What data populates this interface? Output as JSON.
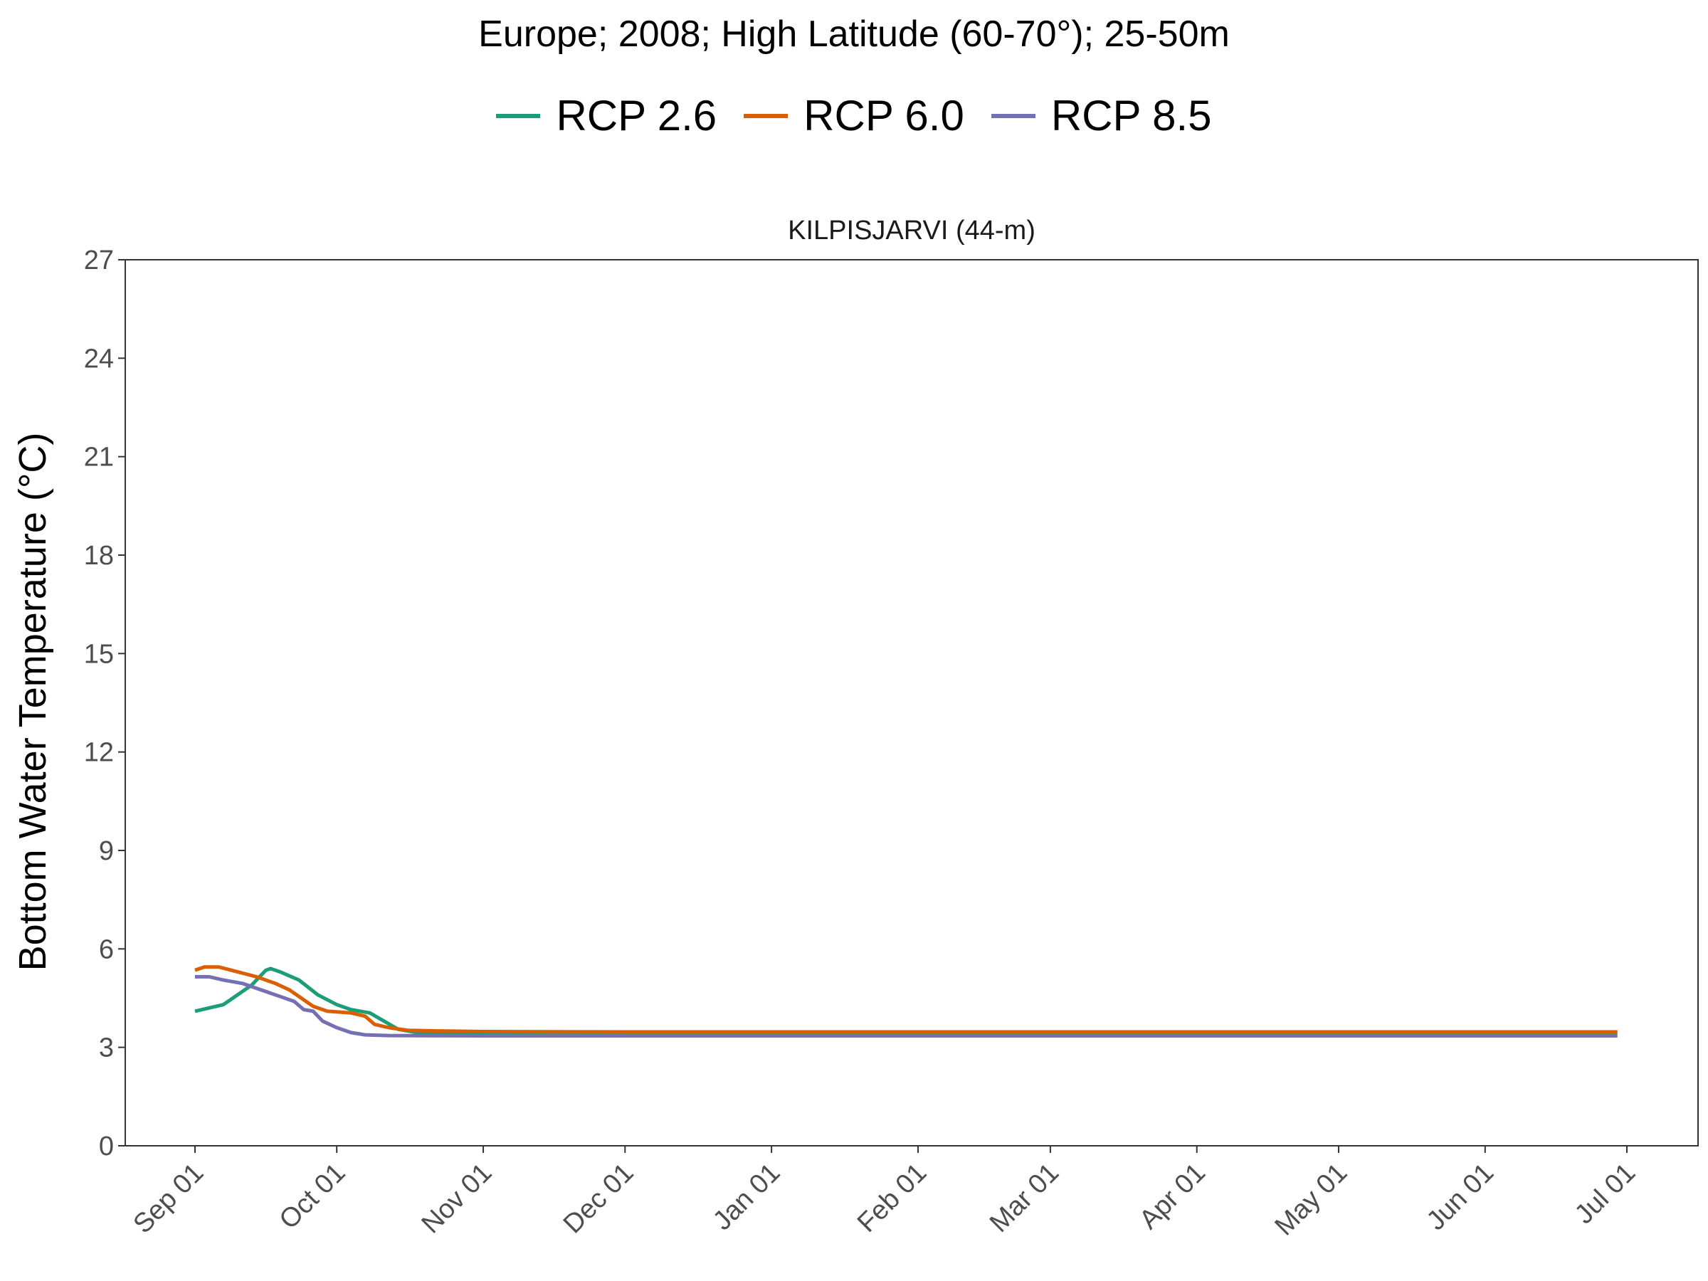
{
  "figure": {
    "title": "Europe;  2008;  High Latitude (60-70°);  25-50m"
  },
  "chart_data": {
    "type": "line",
    "facet_label": "KILPISJARVI (44-m)",
    "xlabel": "",
    "ylabel": "Bottom Water Temperature (°C)",
    "x_is_date": true,
    "xlim": [
      "2008-09-01",
      "2009-07-01"
    ],
    "ylim": [
      0,
      27
    ],
    "yticks": [
      0,
      3,
      6,
      9,
      12,
      15,
      18,
      21,
      24,
      27
    ],
    "xticks": [
      {
        "date": "2008-09-01",
        "label": "Sep 01"
      },
      {
        "date": "2008-10-01",
        "label": "Oct 01"
      },
      {
        "date": "2008-11-01",
        "label": "Nov 01"
      },
      {
        "date": "2008-12-01",
        "label": "Dec 01"
      },
      {
        "date": "2009-01-01",
        "label": "Jan 01"
      },
      {
        "date": "2009-02-01",
        "label": "Feb 01"
      },
      {
        "date": "2009-03-01",
        "label": "Mar 01"
      },
      {
        "date": "2009-04-01",
        "label": "Apr 01"
      },
      {
        "date": "2009-05-01",
        "label": "May 01"
      },
      {
        "date": "2009-06-01",
        "label": "Jun 01"
      },
      {
        "date": "2009-07-01",
        "label": "Jul 01"
      }
    ],
    "grid": false,
    "legend_position": "top",
    "series": [
      {
        "name": "RCP 2.6",
        "color": "#1b9e77",
        "points": [
          [
            "2008-09-01",
            4.1
          ],
          [
            "2008-09-04",
            4.2
          ],
          [
            "2008-09-07",
            4.3
          ],
          [
            "2008-09-10",
            4.6
          ],
          [
            "2008-09-13",
            4.9
          ],
          [
            "2008-09-16",
            5.35
          ],
          [
            "2008-09-17",
            5.4
          ],
          [
            "2008-09-19",
            5.3
          ],
          [
            "2008-09-23",
            5.05
          ],
          [
            "2008-09-27",
            4.6
          ],
          [
            "2008-10-01",
            4.3
          ],
          [
            "2008-10-04",
            4.15
          ],
          [
            "2008-10-08",
            4.05
          ],
          [
            "2008-10-11",
            3.8
          ],
          [
            "2008-10-14",
            3.55
          ],
          [
            "2008-10-18",
            3.45
          ],
          [
            "2008-11-01",
            3.45
          ],
          [
            "2008-12-01",
            3.44
          ],
          [
            "2009-02-01",
            3.44
          ],
          [
            "2009-04-01",
            3.44
          ],
          [
            "2009-06-29",
            3.44
          ]
        ]
      },
      {
        "name": "RCP 6.0",
        "color": "#d95f02",
        "points": [
          [
            "2008-09-01",
            5.35
          ],
          [
            "2008-09-03",
            5.45
          ],
          [
            "2008-09-06",
            5.45
          ],
          [
            "2008-09-10",
            5.3
          ],
          [
            "2008-09-14",
            5.15
          ],
          [
            "2008-09-18",
            4.95
          ],
          [
            "2008-09-21",
            4.75
          ],
          [
            "2008-09-24",
            4.45
          ],
          [
            "2008-09-26",
            4.25
          ],
          [
            "2008-09-29",
            4.1
          ],
          [
            "2008-10-04",
            4.05
          ],
          [
            "2008-10-07",
            3.95
          ],
          [
            "2008-10-09",
            3.7
          ],
          [
            "2008-10-12",
            3.6
          ],
          [
            "2008-10-16",
            3.52
          ],
          [
            "2008-10-22",
            3.5
          ],
          [
            "2008-11-01",
            3.48
          ],
          [
            "2008-12-01",
            3.47
          ],
          [
            "2009-02-01",
            3.47
          ],
          [
            "2009-04-01",
            3.47
          ],
          [
            "2009-06-29",
            3.47
          ]
        ]
      },
      {
        "name": "RCP 8.5",
        "color": "#7570b3",
        "points": [
          [
            "2008-09-01",
            5.15
          ],
          [
            "2008-09-04",
            5.15
          ],
          [
            "2008-09-07",
            5.05
          ],
          [
            "2008-09-11",
            4.95
          ],
          [
            "2008-09-15",
            4.75
          ],
          [
            "2008-09-19",
            4.55
          ],
          [
            "2008-09-22",
            4.4
          ],
          [
            "2008-09-24",
            4.15
          ],
          [
            "2008-09-26",
            4.1
          ],
          [
            "2008-09-28",
            3.8
          ],
          [
            "2008-10-01",
            3.6
          ],
          [
            "2008-10-04",
            3.45
          ],
          [
            "2008-10-07",
            3.38
          ],
          [
            "2008-10-12",
            3.36
          ],
          [
            "2008-11-01",
            3.35
          ],
          [
            "2008-12-01",
            3.35
          ],
          [
            "2009-02-01",
            3.35
          ],
          [
            "2009-04-01",
            3.35
          ],
          [
            "2009-06-29",
            3.35
          ]
        ]
      }
    ]
  }
}
